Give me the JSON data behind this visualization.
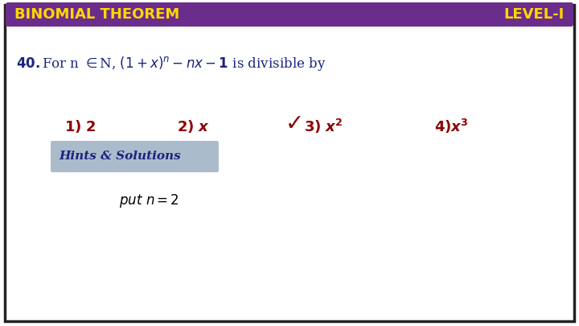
{
  "header_bg_color": "#6B2D8B",
  "header_text_left": "BINOMIAL THEOREM",
  "header_text_right": "LEVEL-I",
  "header_text_color": "#FFD700",
  "border_color": "#222222",
  "bg_color": "#FFFFFF",
  "question_text_color": "#1a237e",
  "option_color": "#8B0000",
  "check_color": "#8B0000",
  "hints_bg": "#AABBCC",
  "hints_text": "Hints & Solutions",
  "solution_text": "put n = 2",
  "fig_width": 7.2,
  "fig_height": 4.05,
  "dpi": 100
}
